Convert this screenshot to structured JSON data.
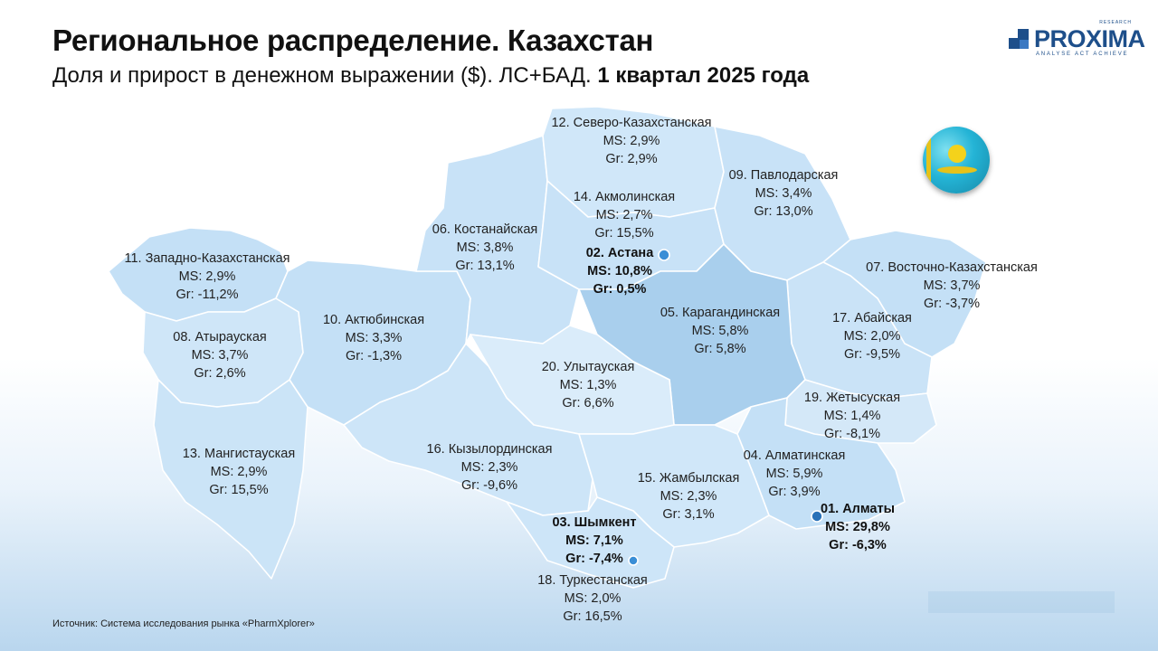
{
  "header": {
    "title": "Региональное распределение. Казахстан",
    "subtitle_main": "Доля и прирост в денежном выражении ($). ЛС+БАД. ",
    "subtitle_bold": "1 квартал 2025 года"
  },
  "logo": {
    "word": "PROXIMA",
    "research": "RESEARCH",
    "tagline": "ANALYSE ACT ACHIEVE"
  },
  "colors": {
    "region_light": "#d4e8f8",
    "region_mid": "#bcdcf5",
    "region_dark": "#a2c9ea",
    "border": "#ffffff"
  },
  "regions": [
    {
      "id": "12",
      "name": "12. Северо-Казахстанская",
      "ms": "MS: 2,9%",
      "gr": "Gr: 2,9%",
      "bold": false
    },
    {
      "id": "09",
      "name": "09. Павлодарская",
      "ms": "MS: 3,4%",
      "gr": "Gr: 13,0%",
      "bold": false
    },
    {
      "id": "14",
      "name": "14. Акмолинская",
      "ms": "MS: 2,7%",
      "gr": "Gr: 15,5%",
      "bold": false
    },
    {
      "id": "06",
      "name": "06. Костанайская",
      "ms": "MS: 3,8%",
      "gr": "Gr: 13,1%",
      "bold": false
    },
    {
      "id": "02",
      "name": "02. Астана",
      "ms": "MS: 10,8%",
      "gr": "Gr: 0,5%",
      "bold": true
    },
    {
      "id": "11",
      "name": "11. Западно-Казахстанская",
      "ms": "MS: 2,9%",
      "gr": "Gr: -11,2%",
      "bold": false
    },
    {
      "id": "07",
      "name": "07. Восточно-Казахстанская",
      "ms": "MS: 3,7%",
      "gr": "Gr: -3,7%",
      "bold": false
    },
    {
      "id": "10",
      "name": "10. Актюбинская",
      "ms": "MS: 3,3%",
      "gr": "Gr: -1,3%",
      "bold": false
    },
    {
      "id": "05",
      "name": "05. Карагандинская",
      "ms": "MS: 5,8%",
      "gr": "Gr: 5,8%",
      "bold": false
    },
    {
      "id": "17",
      "name": "17. Абайская",
      "ms": "MS: 2,0%",
      "gr": "Gr: -9,5%",
      "bold": false
    },
    {
      "id": "08",
      "name": "08. Атырауская",
      "ms": "MS: 3,7%",
      "gr": "Gr: 2,6%",
      "bold": false
    },
    {
      "id": "20",
      "name": "20. Улытауская",
      "ms": "MS: 1,3%",
      "gr": "Gr: 6,6%",
      "bold": false
    },
    {
      "id": "19",
      "name": "19. Жетысуская",
      "ms": "MS: 1,4%",
      "gr": "Gr: -8,1%",
      "bold": false
    },
    {
      "id": "13",
      "name": "13. Мангистауская",
      "ms": "MS: 2,9%",
      "gr": "Gr: 15,5%",
      "bold": false
    },
    {
      "id": "16",
      "name": "16. Кызылординская",
      "ms": "MS: 2,3%",
      "gr": "Gr: -9,6%",
      "bold": false
    },
    {
      "id": "04",
      "name": "04. Алматинская",
      "ms": "MS: 5,9%",
      "gr": "Gr: 3,9%",
      "bold": false
    },
    {
      "id": "15",
      "name": "15. Жамбылская",
      "ms": "MS: 2,3%",
      "gr": "Gr: 3,1%",
      "bold": false
    },
    {
      "id": "01",
      "name": "01. Алматы",
      "ms": "MS: 29,8%",
      "gr": "Gr: -6,3%",
      "bold": true
    },
    {
      "id": "03",
      "name": "03. Шымкент",
      "ms": "MS: 7,1%",
      "gr": "Gr: -7,4%",
      "bold": true
    },
    {
      "id": "18",
      "name": "18. Туркестанская",
      "ms": "MS: 2,0%",
      "gr": "Gr: 16,5%",
      "bold": false
    }
  ],
  "source": "Источник: Система исследования рынка «PharmXplorer»"
}
